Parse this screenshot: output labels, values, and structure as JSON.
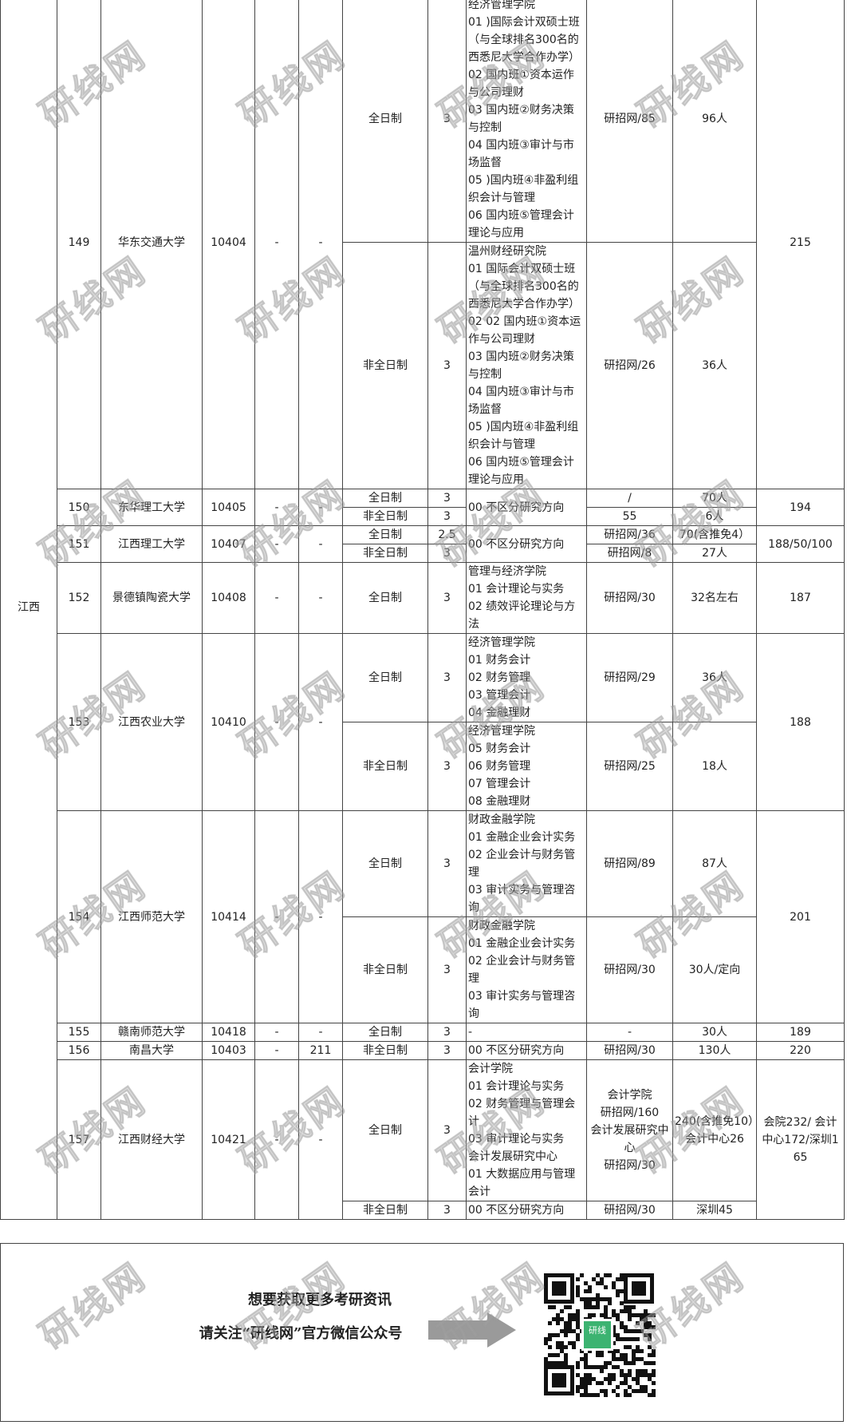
{
  "province": "江西",
  "watermark": "研线网",
  "universities": [
    {
      "no": "149",
      "name": "华东交通大学",
      "code": "10404",
      "c5": "-",
      "c6": "-",
      "total": "215",
      "programs": [
        {
          "mode": "全日制",
          "years": "3",
          "direction": [
            "经济管理学院",
            "01 )国际会计双硕士班（与全球排名300名的西悉尼大学合作办学）",
            "02 国内班①资本运作与公司理财",
            "03 国内班②财务决策与控制",
            "04 国内班③审计与市场监督",
            "05 )国内班④非盈利组织会计与管理",
            "06 国内班⑤管理会计理论与应用"
          ],
          "source": [
            "研招网/85"
          ],
          "plan": [
            "96人"
          ]
        },
        {
          "mode": "非全日制",
          "years": "3",
          "direction": [
            "温州财经研究院",
            "01 国际会计双硕士班（与全球排名300名的西悉尼大学合作办学）",
            "02 02 国内班①资本运作与公司理财",
            "03 国内班②财务决策与控制",
            "04 国内班③审计与市场监督",
            "05 )国内班④非盈利组织会计与管理",
            "06 国内班⑤管理会计理论与应用"
          ],
          "source": [
            "研招网/26"
          ],
          "plan": [
            "36人"
          ]
        }
      ]
    },
    {
      "no": "150",
      "name": "东华理工大学",
      "code": "10405",
      "c5": "-",
      "c6": "-",
      "total": "194",
      "direction": [
        "00 不区分研究方向"
      ],
      "programs": [
        {
          "mode": "全日制",
          "years": "3",
          "source": [
            "/"
          ],
          "plan": [
            "70人"
          ]
        },
        {
          "mode": "非全日制",
          "years": "3",
          "source": [
            "55"
          ],
          "plan": [
            "6人"
          ]
        }
      ]
    },
    {
      "no": "151",
      "name": "江西理工大学",
      "code": "10407",
      "c5": "-",
      "c6": "-",
      "total": "188/50/100",
      "direction": [
        "00 不区分研究方向"
      ],
      "programs": [
        {
          "mode": "全日制",
          "years": "2.5",
          "source": [
            "研招网/36"
          ],
          "plan": [
            "70(含推免4）"
          ]
        },
        {
          "mode": "非全日制",
          "years": "3",
          "source": [
            "研招网/8"
          ],
          "plan": [
            "27人"
          ]
        }
      ]
    },
    {
      "no": "152",
      "name": "景德镇陶瓷大学",
      "code": "10408",
      "c5": "-",
      "c6": "-",
      "total": "187",
      "programs": [
        {
          "mode": "全日制",
          "years": "3",
          "direction": [
            "管理与经济学院",
            "01 会计理论与实务",
            "02 绩效评论理论与方法"
          ],
          "source": [
            "研招网/30"
          ],
          "plan": [
            "32名左右"
          ]
        }
      ]
    },
    {
      "no": "153",
      "name": "江西农业大学",
      "code": "10410",
      "c5": "-",
      "c6": "-",
      "total": "188",
      "programs": [
        {
          "mode": "全日制",
          "years": "3",
          "direction": [
            "经济管理学院",
            "01 财务会计",
            "02 财务管理",
            "03 管理会计",
            "04 金融理财"
          ],
          "source": [
            "研招网/29"
          ],
          "plan": [
            "36人"
          ]
        },
        {
          "mode": "非全日制",
          "years": "3",
          "direction": [
            "经济管理学院",
            "05 财务会计",
            "06 财务管理",
            "07 管理会计",
            "08 金融理财"
          ],
          "source": [
            "研招网/25"
          ],
          "plan": [
            "18人"
          ]
        }
      ]
    },
    {
      "no": "154",
      "name": "江西师范大学",
      "code": "10414",
      "c5": "-",
      "c6": "-",
      "total": "201",
      "programs": [
        {
          "mode": "全日制",
          "years": "3",
          "direction": [
            "财政金融学院",
            "01 金融企业会计实务",
            "02 企业会计与财务管理",
            "03 审计实务与管理咨询"
          ],
          "source": [
            "研招网/89"
          ],
          "plan": [
            "87人"
          ]
        },
        {
          "mode": "非全日制",
          "years": "3",
          "direction": [
            "财政金融学院",
            "01 金融企业会计实务",
            "02 企业会计与财务管理",
            "03 审计实务与管理咨询"
          ],
          "source": [
            "研招网/30"
          ],
          "plan": [
            "30人/定向"
          ]
        }
      ]
    },
    {
      "no": "155",
      "name": "赣南师范大学",
      "code": "10418",
      "c5": "-",
      "c6": "-",
      "total": "189",
      "programs": [
        {
          "mode": "全日制",
          "years": "3",
          "direction": [
            "-"
          ],
          "source": [
            "-"
          ],
          "plan": [
            "30人"
          ]
        }
      ]
    },
    {
      "no": "156",
      "name": "南昌大学",
      "code": "10403",
      "c5": "-",
      "c6": "211",
      "total": "220",
      "programs": [
        {
          "mode": "非全日制",
          "years": "3",
          "direction": [
            "00 不区分研究方向"
          ],
          "source": [
            "研招网/30"
          ],
          "plan": [
            "130人"
          ]
        }
      ]
    },
    {
      "no": "157",
      "name": "江西财经大学",
      "code": "10421",
      "c5": "-",
      "c6": "-",
      "total": "会院232/ 会计中心172/深圳165",
      "programs": [
        {
          "mode": "全日制",
          "years": "3",
          "direction": [
            "会计学院",
            "01 会计理论与实务",
            "02 财务管理与管理会计",
            "03 审计理论与实务",
            "会计发展研究中心",
            "01 大数据应用与管理会计"
          ],
          "source": [
            "会计学院",
            "研招网/160",
            "会计发展研究中心",
            "研招网/30"
          ],
          "plan": [
            "240(含推免10）",
            "会计中心26"
          ]
        },
        {
          "mode": "非全日制",
          "years": "3",
          "direction": [
            "00 不区分研究方向"
          ],
          "source": [
            "研招网/30"
          ],
          "plan": [
            "深圳45"
          ]
        }
      ]
    }
  ],
  "footer": {
    "line1": "想要获取更多考研资讯",
    "line2": "请关注“研线网”官方微信公众号",
    "qr_label": "研线"
  }
}
